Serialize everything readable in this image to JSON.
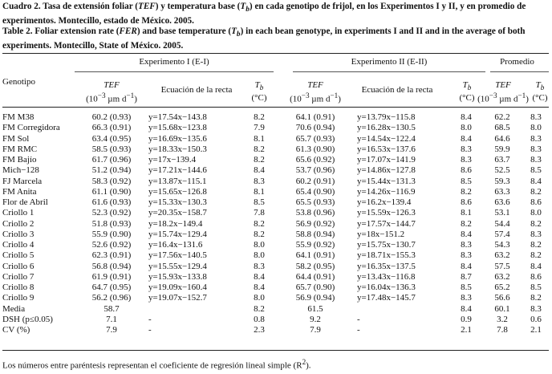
{
  "caption": {
    "es_label": "Cuadro 2.",
    "es_text_1": " Tasa de extensión foliar (",
    "es_tef": "TEF",
    "es_text_2": ") y temperatura base (",
    "es_tb": "T",
    "es_tb_sub": "b",
    "es_text_3": ") en cada genotipo de frijol, en los Experimentos I y II, y en promedio de experimentos. Montecillo, estado de México. 2005.",
    "en_label": "Table 2.",
    "en_text_1": " Foliar extension rate (",
    "en_fer": "FER",
    "en_text_2": ") and base temperature (",
    "en_tb": "T",
    "en_tb_sub": "b",
    "en_text_3": ") in each bean genotype, in experiments I and II and in the average of both experiments. Montecillo, State of México. 2005."
  },
  "header": {
    "genotype": "Genotipo",
    "exp1": "Experimento I (E-I)",
    "exp2": "Experimento II (E-II)",
    "avg": "Promedio",
    "tef": "TEF",
    "tef_unit_pre": "(10",
    "tef_unit_exp": "−3",
    "tef_unit_post": " µm d",
    "tef_unit_exp2": "−1",
    "tef_unit_close": ")",
    "eq": "Ecuación de la recta",
    "tb": "T",
    "tb_sub": "b",
    "tb_unit": "(°C)"
  },
  "rows": [
    [
      "FM M38",
      "60.2 (0.93)",
      "y=17.54x−143.8",
      "8.2",
      "64.1 (0.91)",
      "y=13.79x−115.8",
      "8.4",
      "62.2",
      "8.3"
    ],
    [
      "FM Corregidora",
      "66.3 (0.91)",
      "y=15.68x−123.8",
      "7.9",
      "70.6 (0.94)",
      "y=16.28x−130.5",
      "8.0",
      "68.5",
      "8.0"
    ],
    [
      "FM Sol",
      "63.4 (0.95)",
      "y=16.69x−135.6",
      "8.1",
      "65.7 (0.93)",
      "y=14.54x−122.4",
      "8.4",
      "64.6",
      "8.3"
    ],
    [
      "FM RMC",
      "58.5 (0.93)",
      "y=18.33x−150.3",
      "8.2",
      "61.3 (0.90)",
      "y=16.53x−137.6",
      "8.3",
      "59.9",
      "8.3"
    ],
    [
      "FM Bajío",
      "61.7 (0.96)",
      "y=17x−139.4",
      "8.2",
      "65.6 (0.92)",
      "y=17.07x−141.9",
      "8.3",
      "63.7",
      "8.3"
    ],
    [
      "Mich−128",
      "51.2 (0.94)",
      "y=17.21x−144.6",
      "8.4",
      "53.7 (0.96)",
      "y=14.86x−127.8",
      "8.6",
      "52.5",
      "8.5"
    ],
    [
      "FJ Marcela",
      "58.3 (0.92)",
      "y=13.87x−115.1",
      "8.3",
      "60.2 (0.91)",
      "y=15.44x−131.3",
      "8.5",
      "59.3",
      "8.4"
    ],
    [
      "FM Anita",
      "61.1 (0.90)",
      "y=15.65x−126.8",
      "8.1",
      "65.4 (0.90)",
      "y=14.26x−116.9",
      "8.2",
      "63.3",
      "8.2"
    ],
    [
      "Flor de Abril",
      "61.6 (0.93)",
      "y=15.33x−130.3",
      "8.5",
      "65.5 (0.93)",
      "y=16.2x−139.4",
      "8.6",
      "63.6",
      "8.6"
    ],
    [
      "Criollo 1",
      "52.3 (0.92)",
      "y=20.35x−158.7",
      "7.8",
      "53.8 (0.96)",
      "y=15.59x−126.3",
      "8.1",
      "53.1",
      "8.0"
    ],
    [
      "Criollo 2",
      "51.8 (0.93)",
      "y=18.2x−149.4",
      "8.2",
      "56.9 (0.92)",
      "y=17.57x−144.7",
      "8.2",
      "54.4",
      "8.2"
    ],
    [
      "Criollo 3",
      "55.9 (0.90)",
      "y=15.74x−129.4",
      "8.2",
      "58.8 (0.94)",
      "y=18x−151.2",
      "8.4",
      "57.4",
      "8.3"
    ],
    [
      "Criollo 4",
      "52.6 (0.92)",
      "y=16.4x−131.6",
      "8.0",
      "55.9 (0.92)",
      "y=15.75x−130.7",
      "8.3",
      "54.3",
      "8.2"
    ],
    [
      "Criollo 5",
      "62.3 (0.91)",
      "y=17.56x−140.5",
      "8.0",
      "64.1 (0.91)",
      "y=18.71x−155.3",
      "8.3",
      "63.2",
      "8.2"
    ],
    [
      "Criollo 6",
      "56.8 (0.94)",
      "y=15.55x−129.4",
      "8.3",
      "58.2 (0.95)",
      "y=16.35x−137.5",
      "8.4",
      "57.5",
      "8.4"
    ],
    [
      "Criollo 7",
      "61.9 (0.91)",
      "y=15.93x−133.8",
      "8.4",
      "64.4 (0.91)",
      "y=13.43x−116.8",
      "8.7",
      "63.2",
      "8.6"
    ],
    [
      "Criollo 8",
      "64.7 (0.95)",
      "y=19.09x−160.4",
      "8.4",
      "65.7 (0.90)",
      "y=16.04x−136.3",
      "8.5",
      "65.2",
      "8.5"
    ],
    [
      "Criollo 9",
      "56.2 (0.96)",
      "y=19.07x−152.7",
      "8.0",
      "56.9 (0.94)",
      "y=17.48x−145.7",
      "8.3",
      "56.6",
      "8.2"
    ]
  ],
  "summary": [
    [
      "Media",
      "58.7",
      "",
      "8.2",
      "61.5",
      "",
      "8.4",
      "60.1",
      "8.3"
    ],
    [
      "DSH (p≤0.05)",
      "7.1",
      "-",
      "0.8",
      "9.2",
      "-",
      "0.9",
      "3.2",
      "0.6"
    ],
    [
      "CV (%)",
      "7.9",
      "-",
      "2.3",
      "7.9",
      "-",
      "2.1",
      "7.8",
      "2.1"
    ]
  ],
  "footnote": {
    "text": "Los números entre paréntesis representan el coeficiente de regresión lineal simple (R",
    "sup": "2",
    "close": ")."
  }
}
